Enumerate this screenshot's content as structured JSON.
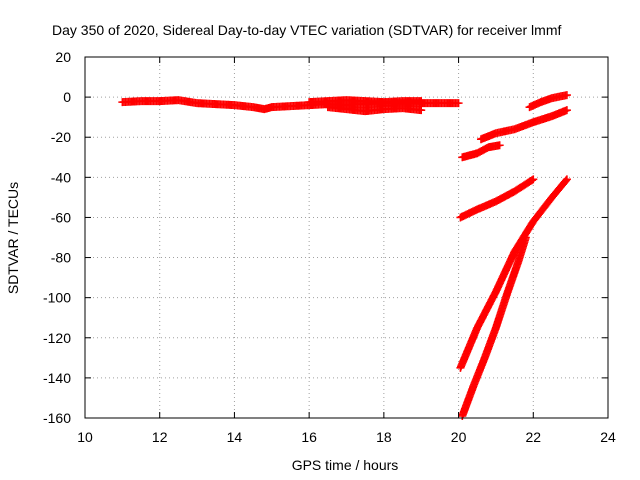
{
  "chart_data": {
    "type": "scatter",
    "title": "Day 350 of 2020, Sidereal Day-to-day VTEC variation (SDTVAR) for receiver lmmf",
    "xlabel": "GPS time / hours",
    "ylabel": "SDTVAR / TECUs",
    "xlim": [
      10,
      24
    ],
    "ylim": [
      -160,
      20
    ],
    "xticks": [
      10,
      12,
      14,
      16,
      18,
      20,
      22,
      24
    ],
    "yticks": [
      20,
      0,
      -20,
      -40,
      -60,
      -80,
      -100,
      -120,
      -140,
      -160
    ],
    "grid": true,
    "marker": "plus",
    "colors": {
      "series": "#ff0000",
      "grid": "#a0a0a0",
      "axis": "#000000"
    },
    "series": [
      {
        "values": [
          [
            11.0,
            -2.5
          ],
          [
            11.5,
            -2
          ],
          [
            12.0,
            -2
          ],
          [
            12.5,
            -1.5
          ],
          [
            13.0,
            -3
          ],
          [
            13.5,
            -3.5
          ],
          [
            14.0,
            -4
          ],
          [
            14.5,
            -5
          ],
          [
            14.8,
            -6
          ],
          [
            15.0,
            -5
          ],
          [
            15.5,
            -4.5
          ],
          [
            16.0,
            -4
          ],
          [
            16.5,
            -3.5
          ],
          [
            17.0,
            -4
          ],
          [
            17.5,
            -3.5
          ],
          [
            18.0,
            -3
          ],
          [
            18.5,
            -3
          ],
          [
            19.0,
            -3
          ],
          [
            19.5,
            -3
          ],
          [
            20.0,
            -3
          ]
        ]
      },
      {
        "values": [
          [
            16.5,
            -5
          ],
          [
            17.0,
            -6
          ],
          [
            17.5,
            -7
          ],
          [
            18.0,
            -6
          ],
          [
            18.5,
            -5.5
          ],
          [
            19.0,
            -6.5
          ]
        ]
      },
      {
        "values": [
          [
            16.0,
            -2.5
          ],
          [
            16.5,
            -2
          ],
          [
            17.0,
            -1.5
          ],
          [
            17.5,
            -2
          ],
          [
            18.0,
            -2.5
          ],
          [
            18.5,
            -2
          ],
          [
            19.0,
            -2
          ]
        ]
      },
      {
        "values": [
          [
            20.1,
            -30
          ],
          [
            20.5,
            -28
          ],
          [
            20.8,
            -25
          ],
          [
            21.1,
            -24
          ]
        ]
      },
      {
        "values": [
          [
            20.6,
            -21
          ],
          [
            21.0,
            -18
          ],
          [
            21.5,
            -16
          ],
          [
            22.0,
            -12.5
          ],
          [
            22.5,
            -9.5
          ],
          [
            22.9,
            -6.5
          ]
        ]
      },
      {
        "values": [
          [
            21.9,
            -5
          ],
          [
            22.2,
            -2.5
          ],
          [
            22.5,
            -0.5
          ],
          [
            22.9,
            1
          ]
        ]
      },
      {
        "values": [
          [
            20.05,
            -60
          ],
          [
            20.5,
            -56
          ],
          [
            21.0,
            -52
          ],
          [
            21.5,
            -47
          ],
          [
            22.0,
            -41
          ]
        ]
      },
      {
        "values": [
          [
            20.05,
            -135
          ],
          [
            20.5,
            -115
          ],
          [
            21.0,
            -97
          ],
          [
            21.5,
            -77
          ],
          [
            22.0,
            -62
          ],
          [
            22.5,
            -50
          ],
          [
            22.9,
            -41
          ]
        ]
      },
      {
        "values": [
          [
            20.1,
            -159
          ],
          [
            20.4,
            -144
          ],
          [
            20.7,
            -130
          ],
          [
            21.0,
            -115
          ],
          [
            21.3,
            -98
          ],
          [
            21.6,
            -82
          ],
          [
            21.8,
            -70
          ]
        ]
      }
    ]
  }
}
